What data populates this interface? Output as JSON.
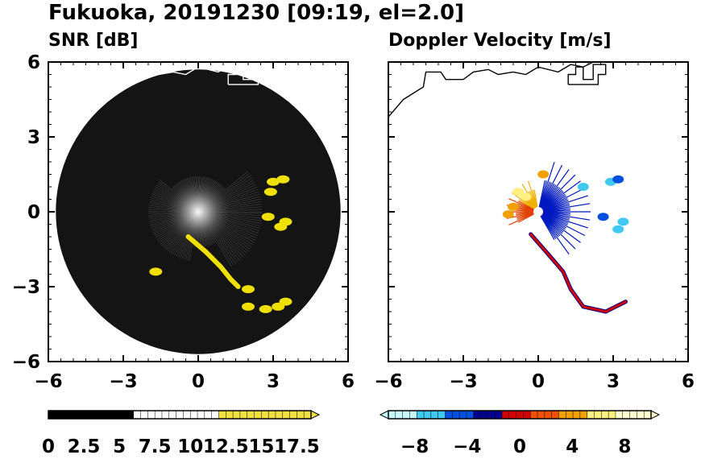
{
  "figure": {
    "title": "Fukuoka, 20191230 [09:19, el=2.0]"
  },
  "chart_data": [
    {
      "type": "heatmap",
      "title": "SNR [dB]",
      "xlim": [
        -6,
        6
      ],
      "ylim": [
        -6,
        6
      ],
      "x_ticks": [
        "−6",
        "−3",
        "0",
        "3",
        "6"
      ],
      "y_ticks": [
        "6",
        "3",
        "0",
        "−3",
        "−6"
      ],
      "x_tick_values": [
        -6,
        -3,
        0,
        3,
        6
      ],
      "y_tick_values": [
        6,
        3,
        0,
        -3,
        -6
      ],
      "colorbar": {
        "min": 0,
        "max": 18.5,
        "ticks": [
          "0",
          "2.5",
          "5",
          "7.5",
          "10",
          "12.5",
          "15",
          "17.5"
        ],
        "tick_values": [
          0,
          2.5,
          5,
          7.5,
          10,
          12.5,
          15,
          17.5
        ],
        "extend": "max",
        "colors": [
          "#000000",
          "#ffffff",
          "#f0e040"
        ]
      },
      "echoes": [
        {
          "x": 3.0,
          "y": 1.2,
          "v": 18
        },
        {
          "x": 3.4,
          "y": 1.3,
          "v": 18
        },
        {
          "x": 2.9,
          "y": 0.8,
          "v": 18
        },
        {
          "x": 3.5,
          "y": -0.4,
          "v": 18
        },
        {
          "x": 3.3,
          "y": -0.6,
          "v": 18
        },
        {
          "x": 2.8,
          "y": -0.2,
          "v": 16
        },
        {
          "x": -1.7,
          "y": -2.4,
          "v": 18
        },
        {
          "x": 2.0,
          "y": -3.1,
          "v": 18
        },
        {
          "x": 2.0,
          "y": -3.8,
          "v": 18
        },
        {
          "x": 2.7,
          "y": -3.9,
          "v": 18
        },
        {
          "x": 3.2,
          "y": -3.8,
          "v": 18
        },
        {
          "x": 3.5,
          "y": -3.6,
          "v": 18
        }
      ],
      "echo_band": [
        [
          -0.4,
          -1.0
        ],
        [
          0.3,
          -1.6
        ],
        [
          0.9,
          -2.2
        ],
        [
          1.3,
          -2.7
        ],
        [
          1.6,
          -3.0
        ]
      ]
    },
    {
      "type": "heatmap",
      "title": "Doppler Velocity [m/s]",
      "xlim": [
        -6,
        6
      ],
      "ylim": [
        -6,
        6
      ],
      "x_ticks": [
        "−6",
        "−3",
        "0",
        "3",
        "6"
      ],
      "x_tick_values": [
        -6,
        -3,
        0,
        3,
        6
      ],
      "colorbar": {
        "min": -10,
        "max": 10,
        "ticks": [
          "−8",
          "−4",
          "0",
          "4",
          "8"
        ],
        "tick_values": [
          -8,
          -4,
          0,
          4,
          8
        ],
        "extend": "both",
        "colors": [
          "#c8f8ff",
          "#40c8f0",
          "#0050e0",
          "#000090",
          "#d00000",
          "#f05000",
          "#f0a000",
          "#fff080",
          "#ffffd0"
        ]
      },
      "echoes": [
        {
          "x": 3.4,
          "y": -0.4,
          "v": -6
        },
        {
          "x": 3.2,
          "y": -0.7,
          "v": -6
        },
        {
          "x": 2.9,
          "y": 1.2,
          "v": -6
        },
        {
          "x": 3.2,
          "y": 1.3,
          "v": -5
        },
        {
          "x": 2.6,
          "y": -0.2,
          "v": -5
        },
        {
          "x": 1.8,
          "y": 1.0,
          "v": -6
        },
        {
          "x": -0.8,
          "y": 0.8,
          "v": 7
        },
        {
          "x": -0.5,
          "y": 0.6,
          "v": 6
        },
        {
          "x": -1.0,
          "y": 0.2,
          "v": 5
        },
        {
          "x": -1.2,
          "y": -0.1,
          "v": 4
        },
        {
          "x": 0.2,
          "y": 1.5,
          "v": 4
        }
      ],
      "echo_band": [
        [
          -0.3,
          -0.9
        ],
        [
          0.4,
          -1.7
        ],
        [
          1.0,
          -2.4
        ],
        [
          1.3,
          -3.1
        ],
        [
          1.8,
          -3.8
        ],
        [
          2.7,
          -4.0
        ],
        [
          3.5,
          -3.6
        ]
      ]
    }
  ]
}
